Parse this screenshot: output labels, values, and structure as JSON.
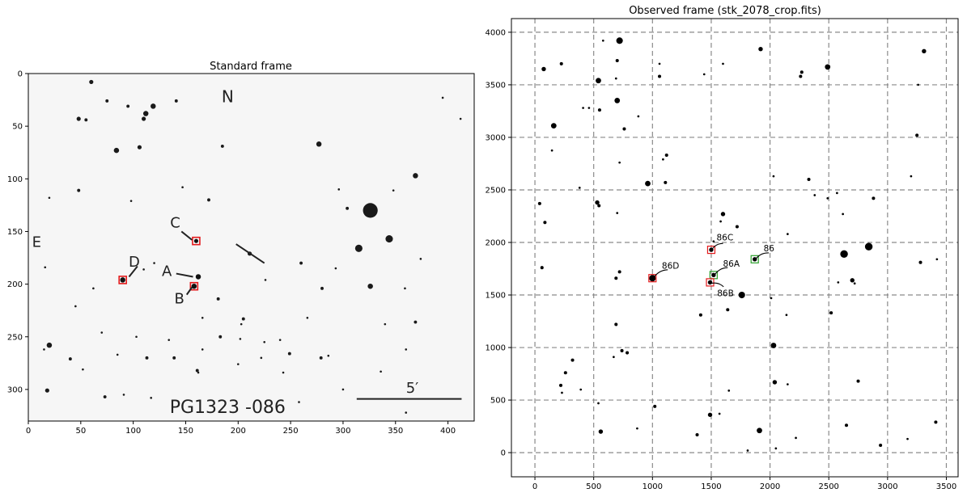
{
  "chart_data": [
    {
      "type": "scatter",
      "title": "Standard frame",
      "xlabel": "",
      "ylabel": "",
      "xlim": [
        0,
        425
      ],
      "ylim": [
        330,
        0
      ],
      "xticks": [
        0,
        50,
        100,
        150,
        200,
        250,
        300,
        350,
        400
      ],
      "yticks": [
        0,
        50,
        100,
        150,
        200,
        250,
        300
      ],
      "grid": false,
      "plate_text": {
        "north": "N",
        "east": "E",
        "field_name": "PG1323 -086",
        "scale_label": "5′"
      },
      "scale_bar": {
        "x": [
          313,
          413
        ],
        "y": 309
      },
      "stars": [
        [
          60,
          8,
          2
        ],
        [
          75,
          26,
          1.5
        ],
        [
          95,
          31,
          1.5
        ],
        [
          119,
          31,
          2.5
        ],
        [
          141,
          26,
          1.5
        ],
        [
          55,
          44,
          1.5
        ],
        [
          48,
          43,
          2
        ],
        [
          112,
          38,
          2.5
        ],
        [
          110,
          43,
          2
        ],
        [
          84,
          73,
          2.5
        ],
        [
          106,
          70,
          2
        ],
        [
          185,
          69,
          1.5
        ],
        [
          277,
          67,
          2.5
        ],
        [
          395,
          23,
          1
        ],
        [
          412,
          43,
          1
        ],
        [
          48,
          111,
          1.5
        ],
        [
          147,
          108,
          1
        ],
        [
          98,
          121,
          1
        ],
        [
          172,
          120,
          1.5
        ],
        [
          296,
          110,
          1
        ],
        [
          369,
          97,
          2.5
        ],
        [
          304,
          128,
          1.5
        ],
        [
          348,
          111,
          1
        ],
        [
          20,
          118,
          1
        ],
        [
          326,
          130,
          7
        ],
        [
          344,
          157,
          3.5
        ],
        [
          315,
          166,
          3.5
        ],
        [
          211,
          171,
          2
        ],
        [
          326,
          202,
          2.5
        ],
        [
          16,
          184,
          1
        ],
        [
          110,
          186,
          1
        ],
        [
          120,
          180,
          1
        ],
        [
          226,
          196,
          1
        ],
        [
          260,
          180,
          1.5
        ],
        [
          293,
          185,
          1
        ],
        [
          374,
          176,
          1
        ],
        [
          62,
          204,
          1
        ],
        [
          181,
          214,
          1.5
        ],
        [
          280,
          204,
          1.5
        ],
        [
          359,
          204,
          1
        ],
        [
          45,
          221,
          1
        ],
        [
          166,
          232,
          1
        ],
        [
          266,
          232,
          1
        ],
        [
          369,
          236,
          1.5
        ],
        [
          340,
          238,
          1
        ],
        [
          203,
          238,
          1
        ],
        [
          205,
          233,
          1.5
        ],
        [
          20,
          258,
          2.5
        ],
        [
          15,
          262,
          1
        ],
        [
          70,
          246,
          1
        ],
        [
          103,
          250,
          1
        ],
        [
          134,
          253,
          1
        ],
        [
          202,
          252,
          1
        ],
        [
          225,
          255,
          1
        ],
        [
          240,
          253,
          1
        ],
        [
          286,
          268,
          1
        ],
        [
          360,
          262,
          1
        ],
        [
          40,
          271,
          1.5
        ],
        [
          113,
          270,
          1.5
        ],
        [
          139,
          270,
          1.5
        ],
        [
          222,
          270,
          1
        ],
        [
          249,
          266,
          1.5
        ],
        [
          279,
          270,
          1.5
        ],
        [
          166,
          262,
          1
        ],
        [
          52,
          281,
          1
        ],
        [
          162,
          284,
          1
        ],
        [
          200,
          276,
          1
        ],
        [
          243,
          284,
          1
        ],
        [
          336,
          283,
          1
        ],
        [
          18,
          301,
          2
        ],
        [
          73,
          307,
          1.5
        ],
        [
          91,
          305,
          1
        ],
        [
          258,
          312,
          1
        ],
        [
          300,
          300,
          1
        ],
        [
          117,
          308,
          1
        ],
        [
          183,
          250,
          1.5
        ],
        [
          85,
          267,
          1
        ],
        [
          161,
          282,
          1.5
        ],
        [
          360,
          322,
          1
        ]
      ],
      "highlights": [
        {
          "label": "C",
          "x": 160,
          "y": 159,
          "box_color": "#e41a1c",
          "star_r": 2,
          "text_x": 140,
          "text_y": 141,
          "line": [
            [
              146,
              150
            ],
            [
              156,
              158
            ]
          ]
        },
        {
          "label": "A",
          "x": 162,
          "y": 193,
          "box_color": "",
          "star_r": 2.5,
          "text_x": 132,
          "text_y": 187,
          "line": [
            [
              141,
              190
            ],
            [
              157,
              193
            ]
          ]
        },
        {
          "label": "B",
          "x": 158,
          "y": 202,
          "box_color": "#e41a1c",
          "star_r": 2.5,
          "text_x": 144,
          "text_y": 213,
          "line": [
            [
              151,
              210
            ],
            [
              156,
              203
            ]
          ]
        },
        {
          "label": "D",
          "x": 90,
          "y": 196,
          "box_color": "#e41a1c",
          "star_r": 2.5,
          "text_x": 101,
          "text_y": 178,
          "line": [
            [
              104,
              183
            ],
            [
              96,
              193
            ]
          ]
        }
      ],
      "trail": [
        [
          198,
          162
        ],
        [
          225,
          180
        ]
      ]
    },
    {
      "type": "scatter",
      "title": "Observed frame (stk_2078_crop.fits)",
      "xlabel": "",
      "ylabel": "",
      "xlim": [
        -200,
        3600
      ],
      "ylim": [
        -230,
        4130
      ],
      "xticks": [
        0,
        500,
        1000,
        1500,
        2000,
        2500,
        3000,
        3500
      ],
      "yticks": [
        0,
        500,
        1000,
        1500,
        2000,
        2500,
        3000,
        3500,
        4000
      ],
      "grid": true,
      "grid_style": "dashed",
      "stars": [
        [
          75,
          3650,
          2
        ],
        [
          225,
          3700,
          1.5
        ],
        [
          580,
          3920,
          1
        ],
        [
          720,
          3920,
          3
        ],
        [
          700,
          3730,
          1.5
        ],
        [
          540,
          3540,
          2.5
        ],
        [
          690,
          3560,
          1
        ],
        [
          1060,
          3700,
          1
        ],
        [
          1060,
          3580,
          1.5
        ],
        [
          1440,
          3600,
          1
        ],
        [
          1600,
          3700,
          1
        ],
        [
          1920,
          3840,
          2
        ],
        [
          2270,
          3620,
          1.5
        ],
        [
          2260,
          3580,
          1.5
        ],
        [
          2490,
          3670,
          2.5
        ],
        [
          3310,
          3820,
          2
        ],
        [
          3260,
          3500,
          1
        ],
        [
          3250,
          3020,
          1.5
        ],
        [
          700,
          3350,
          2.5
        ],
        [
          550,
          3260,
          1.5
        ],
        [
          410,
          3280,
          1
        ],
        [
          460,
          3280,
          1
        ],
        [
          760,
          3080,
          1.5
        ],
        [
          880,
          3200,
          1
        ],
        [
          160,
          3110,
          2.5
        ],
        [
          145,
          2875,
          1
        ],
        [
          720,
          2760,
          1
        ],
        [
          1120,
          2830,
          1.5
        ],
        [
          1090,
          2790,
          1
        ],
        [
          2030,
          2630,
          1
        ],
        [
          3200,
          2630,
          1
        ],
        [
          2330,
          2600,
          1.5
        ],
        [
          960,
          2560,
          2.5
        ],
        [
          1110,
          2570,
          1.5
        ],
        [
          380,
          2520,
          1
        ],
        [
          40,
          2370,
          1.5
        ],
        [
          530,
          2380,
          2
        ],
        [
          545,
          2350,
          1.5
        ],
        [
          700,
          2280,
          1
        ],
        [
          1580,
          2200,
          1
        ],
        [
          1600,
          2270,
          2
        ],
        [
          1720,
          2150,
          1.5
        ],
        [
          2380,
          2450,
          1
        ],
        [
          2490,
          2420,
          1
        ],
        [
          2570,
          2470,
          1
        ],
        [
          2880,
          2420,
          1.5
        ],
        [
          2620,
          2270,
          1
        ],
        [
          85,
          2190,
          1.5
        ],
        [
          60,
          1760,
          1.5
        ],
        [
          2150,
          2080,
          1
        ],
        [
          2630,
          1890,
          3.5
        ],
        [
          2840,
          1960,
          3.5
        ],
        [
          2700,
          1640,
          2
        ],
        [
          3280,
          1810,
          1.5
        ],
        [
          3420,
          1840,
          1
        ],
        [
          2720,
          1610,
          1
        ],
        [
          720,
          1720,
          1.5
        ],
        [
          690,
          1660,
          1.5
        ],
        [
          1760,
          1500,
          3
        ],
        [
          1640,
          1360,
          1.5
        ],
        [
          1410,
          1310,
          1.5
        ],
        [
          2010,
          1470,
          1
        ],
        [
          2140,
          1310,
          1
        ],
        [
          2520,
          1330,
          1.5
        ],
        [
          2580,
          1620,
          1
        ],
        [
          2030,
          1020,
          2.5
        ],
        [
          2040,
          670,
          2
        ],
        [
          2150,
          650,
          1
        ],
        [
          690,
          1220,
          1.5
        ],
        [
          670,
          910,
          1
        ],
        [
          740,
          970,
          1.5
        ],
        [
          785,
          950,
          1.5
        ],
        [
          320,
          880,
          1.5
        ],
        [
          260,
          760,
          1.5
        ],
        [
          220,
          640,
          1.5
        ],
        [
          230,
          570,
          1
        ],
        [
          390,
          600,
          1
        ],
        [
          540,
          470,
          1
        ],
        [
          1020,
          440,
          1.5
        ],
        [
          1650,
          590,
          1
        ],
        [
          1490,
          360,
          2
        ],
        [
          1570,
          370,
          1
        ],
        [
          1910,
          210,
          2.5
        ],
        [
          1810,
          20,
          1
        ],
        [
          2050,
          40,
          1
        ],
        [
          2220,
          140,
          1
        ],
        [
          2650,
          260,
          1.5
        ],
        [
          2750,
          680,
          1.5
        ],
        [
          2940,
          70,
          1.5
        ],
        [
          3170,
          130,
          1
        ],
        [
          3410,
          290,
          1.5
        ],
        [
          1380,
          170,
          1.5
        ],
        [
          870,
          230,
          1
        ],
        [
          560,
          200,
          2
        ],
        [
          1520,
          2010,
          1
        ]
      ],
      "highlights": [
        {
          "label": "86C",
          "x": 1500,
          "y": 1930,
          "box_color": "#e41a1c",
          "star_r": 2,
          "text_x": 1545,
          "text_y": 2050,
          "line": [
            [
              1600,
              1990
            ],
            [
              1510,
              1940
            ]
          ]
        },
        {
          "label": "86",
          "x": 1870,
          "y": 1840,
          "box_color": "#2ca02c",
          "star_r": 2,
          "text_x": 1945,
          "text_y": 1945,
          "line": [
            [
              1990,
              1900
            ],
            [
              1882,
              1847
            ]
          ]
        },
        {
          "label": "86A",
          "x": 1520,
          "y": 1690,
          "box_color": "#2ca02c",
          "star_r": 2,
          "text_x": 1600,
          "text_y": 1800,
          "line": [
            [
              1640,
              1760
            ],
            [
              1532,
              1697
            ]
          ]
        },
        {
          "label": "86D",
          "x": 1000,
          "y": 1660,
          "box_color": "#e41a1c",
          "star_r": 3,
          "text_x": 1080,
          "text_y": 1780,
          "line": [
            [
              1130,
              1740
            ],
            [
              1012,
              1667
            ]
          ]
        },
        {
          "label": "86B",
          "x": 1490,
          "y": 1620,
          "box_color": "#e41a1c",
          "star_r": 2,
          "text_x": 1550,
          "text_y": 1520,
          "line": [
            [
              1605,
              1578
            ],
            [
              1503,
              1612
            ]
          ]
        }
      ]
    }
  ]
}
